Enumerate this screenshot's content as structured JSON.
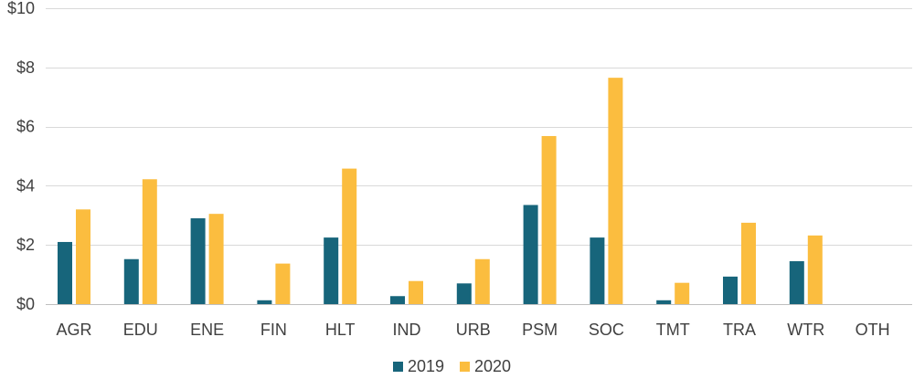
{
  "chart_data": {
    "type": "bar",
    "categories": [
      "AGR",
      "EDU",
      "ENE",
      "FIN",
      "HLT",
      "IND",
      "URB",
      "PSM",
      "SOC",
      "TMT",
      "TRA",
      "WTR",
      "OTH"
    ],
    "series": [
      {
        "name": "2019",
        "color": "#17657b",
        "values": [
          2.1,
          1.52,
          2.9,
          0.13,
          2.25,
          0.27,
          0.7,
          3.35,
          2.25,
          0.13,
          0.93,
          1.45,
          0
        ]
      },
      {
        "name": "2020",
        "color": "#fbbd3f",
        "values": [
          3.2,
          4.22,
          3.05,
          1.37,
          4.58,
          0.78,
          1.52,
          5.68,
          7.65,
          0.72,
          2.75,
          2.32,
          0
        ]
      }
    ],
    "y_ticks": [
      {
        "value": 0,
        "label": "$0"
      },
      {
        "value": 2,
        "label": "$2"
      },
      {
        "value": 4,
        "label": "$4"
      },
      {
        "value": 6,
        "label": "$6"
      },
      {
        "value": 8,
        "label": "$8"
      },
      {
        "value": 10,
        "label": "$10"
      }
    ],
    "ylim": [
      0,
      10
    ],
    "grid": true,
    "legend_position": "bottom-center",
    "gridline_color": "#d9d9d9",
    "axis_color": "#bfbfbf"
  }
}
